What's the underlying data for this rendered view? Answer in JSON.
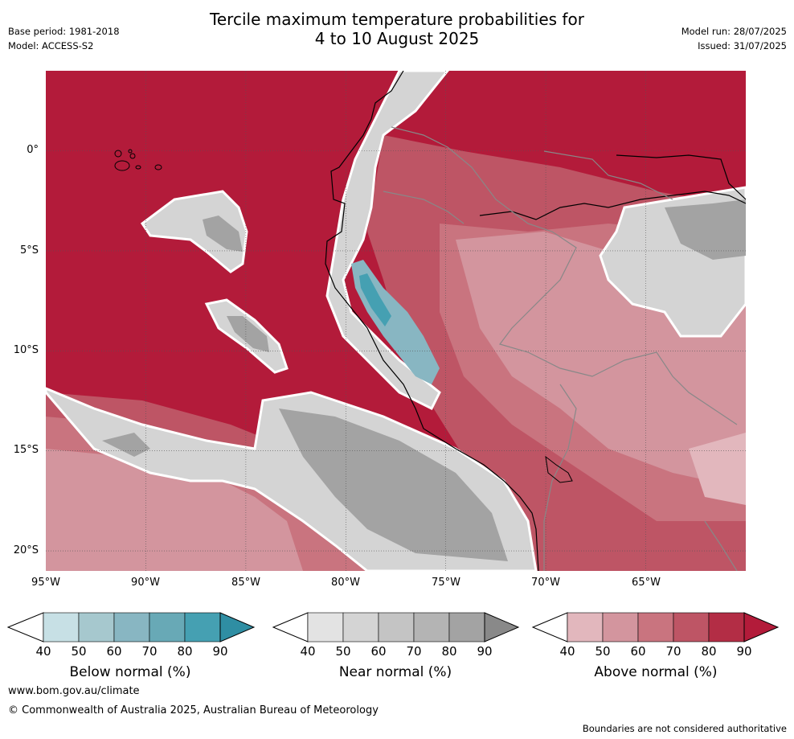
{
  "header": {
    "title_line1": "Tercile maximum temperature probabilities for",
    "title_line2": "4 to 10 August 2025",
    "base_period": "Base period: 1981-2018",
    "model": "Model: ACCESS-S2",
    "model_run": "Model run: 28/07/2025",
    "issued": "Issued: 31/07/2025"
  },
  "map": {
    "lat_labels": [
      "0°",
      "5°S",
      "10°S",
      "15°S",
      "20°S"
    ],
    "lon_labels": [
      "95°W",
      "90°W",
      "85°W",
      "80°W",
      "75°W",
      "70°W",
      "65°W"
    ],
    "lon_range": [
      -95,
      -60
    ],
    "lat_range": [
      -21,
      4
    ]
  },
  "colorbars": [
    {
      "name": "Below normal (%)",
      "ticks": [
        "40",
        "50",
        "60",
        "70",
        "80",
        "90"
      ],
      "colors": [
        "#c7e0e5",
        "#a6c8ce",
        "#88b6c2",
        "#68a9b6",
        "#45a0b2",
        "#2f8ea3"
      ]
    },
    {
      "name": "Near normal (%)",
      "ticks": [
        "40",
        "50",
        "60",
        "70",
        "80",
        "90"
      ],
      "colors": [
        "#e3e3e3",
        "#d4d4d4",
        "#c4c4c4",
        "#b4b4b4",
        "#a3a3a3",
        "#898989"
      ]
    },
    {
      "name": "Above normal (%)",
      "ticks": [
        "40",
        "50",
        "60",
        "70",
        "80",
        "90"
      ],
      "colors": [
        "#e2b7bd",
        "#d3959e",
        "#c9747f",
        "#be5565",
        "#b32d45",
        "#b31b3a"
      ]
    }
  ],
  "footer": {
    "url": "www.bom.gov.au/climate",
    "copyright": "© Commonwealth of Australia 2025, Australian Bureau of Meteorology",
    "disclaimer": "Boundaries are not considered authoritative"
  }
}
